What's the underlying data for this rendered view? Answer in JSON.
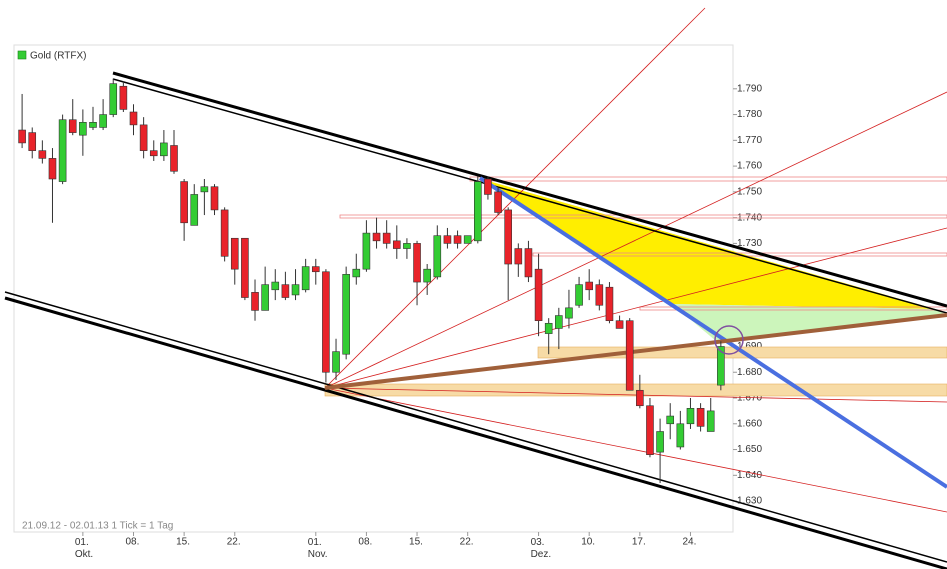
{
  "chart_data": {
    "type": "candlestick",
    "legend": "Gold (RTFX)",
    "footnote": "21.09.12 - 02.01.13   1 Tick = 1 Tag",
    "up_color": "#33cc33",
    "down_color": "#e8232a",
    "x": [
      0,
      1,
      2,
      3,
      4,
      5,
      6,
      7,
      8,
      9,
      10,
      11,
      12,
      13,
      14,
      15,
      16,
      17,
      18,
      19,
      20,
      21,
      22,
      23,
      24,
      25,
      26,
      27,
      28,
      29,
      30,
      31,
      32,
      33,
      34,
      35,
      36,
      37,
      38,
      39,
      40,
      41,
      42,
      43,
      44,
      45,
      46,
      47,
      48,
      49,
      50,
      51,
      52,
      53,
      54,
      55,
      56,
      57,
      58,
      59,
      60,
      61,
      62,
      63,
      64,
      65,
      66,
      67,
      68,
      69
    ],
    "open": [
      1774,
      1773,
      1766,
      1763,
      1754,
      1778,
      1772,
      1775,
      1775,
      1780,
      1791,
      1781,
      1776,
      1766,
      1764,
      1768,
      1754,
      1737,
      1750,
      1752,
      1743,
      1732,
      1732,
      1711,
      1704,
      1712,
      1714,
      1710,
      1712,
      1721,
      1719,
      1680,
      1687,
      1717,
      1720,
      1734,
      1734,
      1731,
      1728,
      1730,
      1715,
      1717,
      1733,
      1733,
      1730,
      1731,
      1755,
      1750,
      1743,
      1728,
      1728,
      1720,
      1695,
      1697,
      1701,
      1706,
      1715,
      1714,
      1713,
      1700,
      1700,
      1673,
      1667,
      1649,
      1660,
      1651,
      1660,
      1666,
      1657,
      1675
    ],
    "close": [
      1769,
      1766,
      1763,
      1755,
      1778,
      1773,
      1777,
      1777,
      1780,
      1792,
      1782,
      1776,
      1766,
      1764,
      1769,
      1758,
      1738,
      1749,
      1752,
      1743,
      1725,
      1720,
      1709,
      1704,
      1714,
      1715,
      1709,
      1714,
      1721,
      1719,
      1680,
      1688,
      1718,
      1720,
      1734,
      1731,
      1730,
      1728,
      1730,
      1715,
      1720,
      1733,
      1730,
      1730,
      1733,
      1754,
      1749,
      1742,
      1722,
      1722,
      1717,
      1700,
      1699,
      1702,
      1705,
      1714,
      1712,
      1706,
      1700,
      1697,
      1673,
      1667,
      1648,
      1657,
      1663,
      1660,
      1666,
      1659,
      1665,
      1690
    ],
    "high": [
      1788,
      1775,
      1770,
      1767,
      1780,
      1786,
      1782,
      1783,
      1786,
      1794,
      1793,
      1784,
      1779,
      1770,
      1774,
      1774,
      1755,
      1753,
      1755,
      1753,
      1744,
      1732,
      1732,
      1716,
      1721,
      1720,
      1719,
      1720,
      1724,
      1724,
      1720,
      1693,
      1721,
      1726,
      1739,
      1740,
      1739,
      1737,
      1732,
      1731,
      1722,
      1737,
      1736,
      1735,
      1733,
      1756,
      1756,
      1752,
      1744,
      1730,
      1731,
      1726,
      1701,
      1705,
      1712,
      1717,
      1720,
      1716,
      1715,
      1702,
      1701,
      1679,
      1670,
      1662,
      1668,
      1665,
      1670,
      1668,
      1670,
      1692
    ],
    "low": [
      1767,
      1763,
      1761,
      1738,
      1753,
      1772,
      1764,
      1774,
      1774,
      1779,
      1781,
      1772,
      1763,
      1762,
      1762,
      1757,
      1731,
      1737,
      1741,
      1741,
      1723,
      1714,
      1708,
      1700,
      1704,
      1708,
      1708,
      1708,
      1711,
      1714,
      1676,
      1677,
      1685,
      1714,
      1719,
      1728,
      1728,
      1724,
      1724,
      1706,
      1710,
      1716,
      1728,
      1728,
      1730,
      1730,
      1747,
      1741,
      1708,
      1717,
      1715,
      1694,
      1687,
      1689,
      1697,
      1705,
      1708,
      1704,
      1699,
      1697,
      1673,
      1666,
      1647,
      1637,
      1654,
      1650,
      1658,
      1657,
      1657,
      1673
    ],
    "ylim": [
      1618,
      1807
    ],
    "yticks": [
      {
        "value": 1630,
        "label": "1.630"
      },
      {
        "value": 1640,
        "label": "1.640"
      },
      {
        "value": 1650,
        "label": "1.650"
      },
      {
        "value": 1660,
        "label": "1.660"
      },
      {
        "value": 1670,
        "label": "1.670"
      },
      {
        "value": 1680,
        "label": "1.680"
      },
      {
        "value": 1690,
        "label": "1.690"
      },
      {
        "value": 1700,
        "label": "1.700"
      },
      {
        "value": 1710,
        "label": "1.710"
      },
      {
        "value": 1720,
        "label": "1.720"
      },
      {
        "value": 1730,
        "label": "1.730"
      },
      {
        "value": 1740,
        "label": "1.740"
      },
      {
        "value": 1750,
        "label": "1.750"
      },
      {
        "value": 1760,
        "label": "1.760"
      },
      {
        "value": 1770,
        "label": "1.770"
      },
      {
        "value": 1780,
        "label": "1.780"
      },
      {
        "value": 1790,
        "label": "1.790"
      }
    ],
    "xlim": [
      -0.8,
      70.2
    ],
    "xticks": [
      {
        "value": 6,
        "label": "01. Okt."
      },
      {
        "value": 11,
        "label": "08."
      },
      {
        "value": 16,
        "label": "15."
      },
      {
        "value": 21,
        "label": "22."
      },
      {
        "value": 29,
        "label": "01. Nov."
      },
      {
        "value": 34,
        "label": "08."
      },
      {
        "value": 39,
        "label": "15."
      },
      {
        "value": 44,
        "label": "22."
      },
      {
        "value": 51,
        "label": "03. Dez."
      },
      {
        "value": 56,
        "label": "10."
      },
      {
        "value": 61,
        "label": "17."
      },
      {
        "value": 66,
        "label": "24."
      }
    ]
  }
}
